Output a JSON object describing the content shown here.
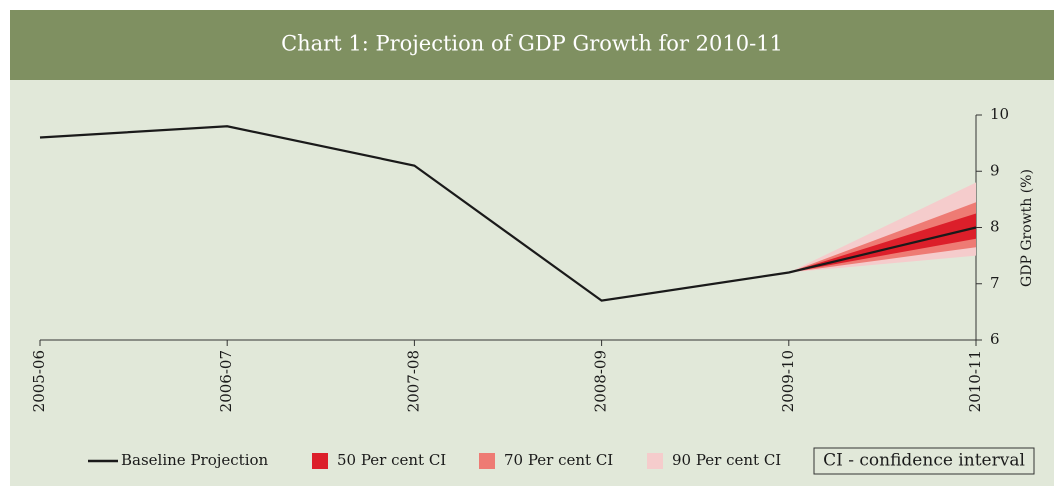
{
  "chart_data": {
    "type": "fan",
    "title": "Chart 1: Projection of GDP Growth for 2010-11",
    "y_label": "GDP Growth (%)",
    "categories": [
      "2005-06",
      "2006-07",
      "2007-08",
      "2008-09",
      "2009-10",
      "2010-11"
    ],
    "series": [
      {
        "name": "Baseline Projection",
        "color": "#1a1a1a",
        "values": [
          9.6,
          9.8,
          9.1,
          6.7,
          7.2,
          8.0
        ]
      }
    ],
    "intervals": [
      {
        "name": "90 Per cent CI",
        "color": "#f5cccc",
        "lower": [
          null,
          null,
          null,
          null,
          7.2,
          7.5
        ],
        "upper": [
          null,
          null,
          null,
          null,
          7.2,
          8.8
        ]
      },
      {
        "name": "70 Per cent CI",
        "color": "#ee7b74",
        "lower": [
          null,
          null,
          null,
          null,
          7.2,
          7.65
        ],
        "upper": [
          null,
          null,
          null,
          null,
          7.2,
          8.45
        ]
      },
      {
        "name": "50 Per cent CI",
        "color": "#dc1f2a",
        "lower": [
          null,
          null,
          null,
          null,
          7.2,
          7.8
        ],
        "upper": [
          null,
          null,
          null,
          null,
          7.2,
          8.25
        ]
      }
    ],
    "ylim": [
      6,
      10
    ],
    "yticks": [
      6,
      7,
      8,
      9,
      10
    ],
    "annotation": "CI - confidence interval"
  }
}
